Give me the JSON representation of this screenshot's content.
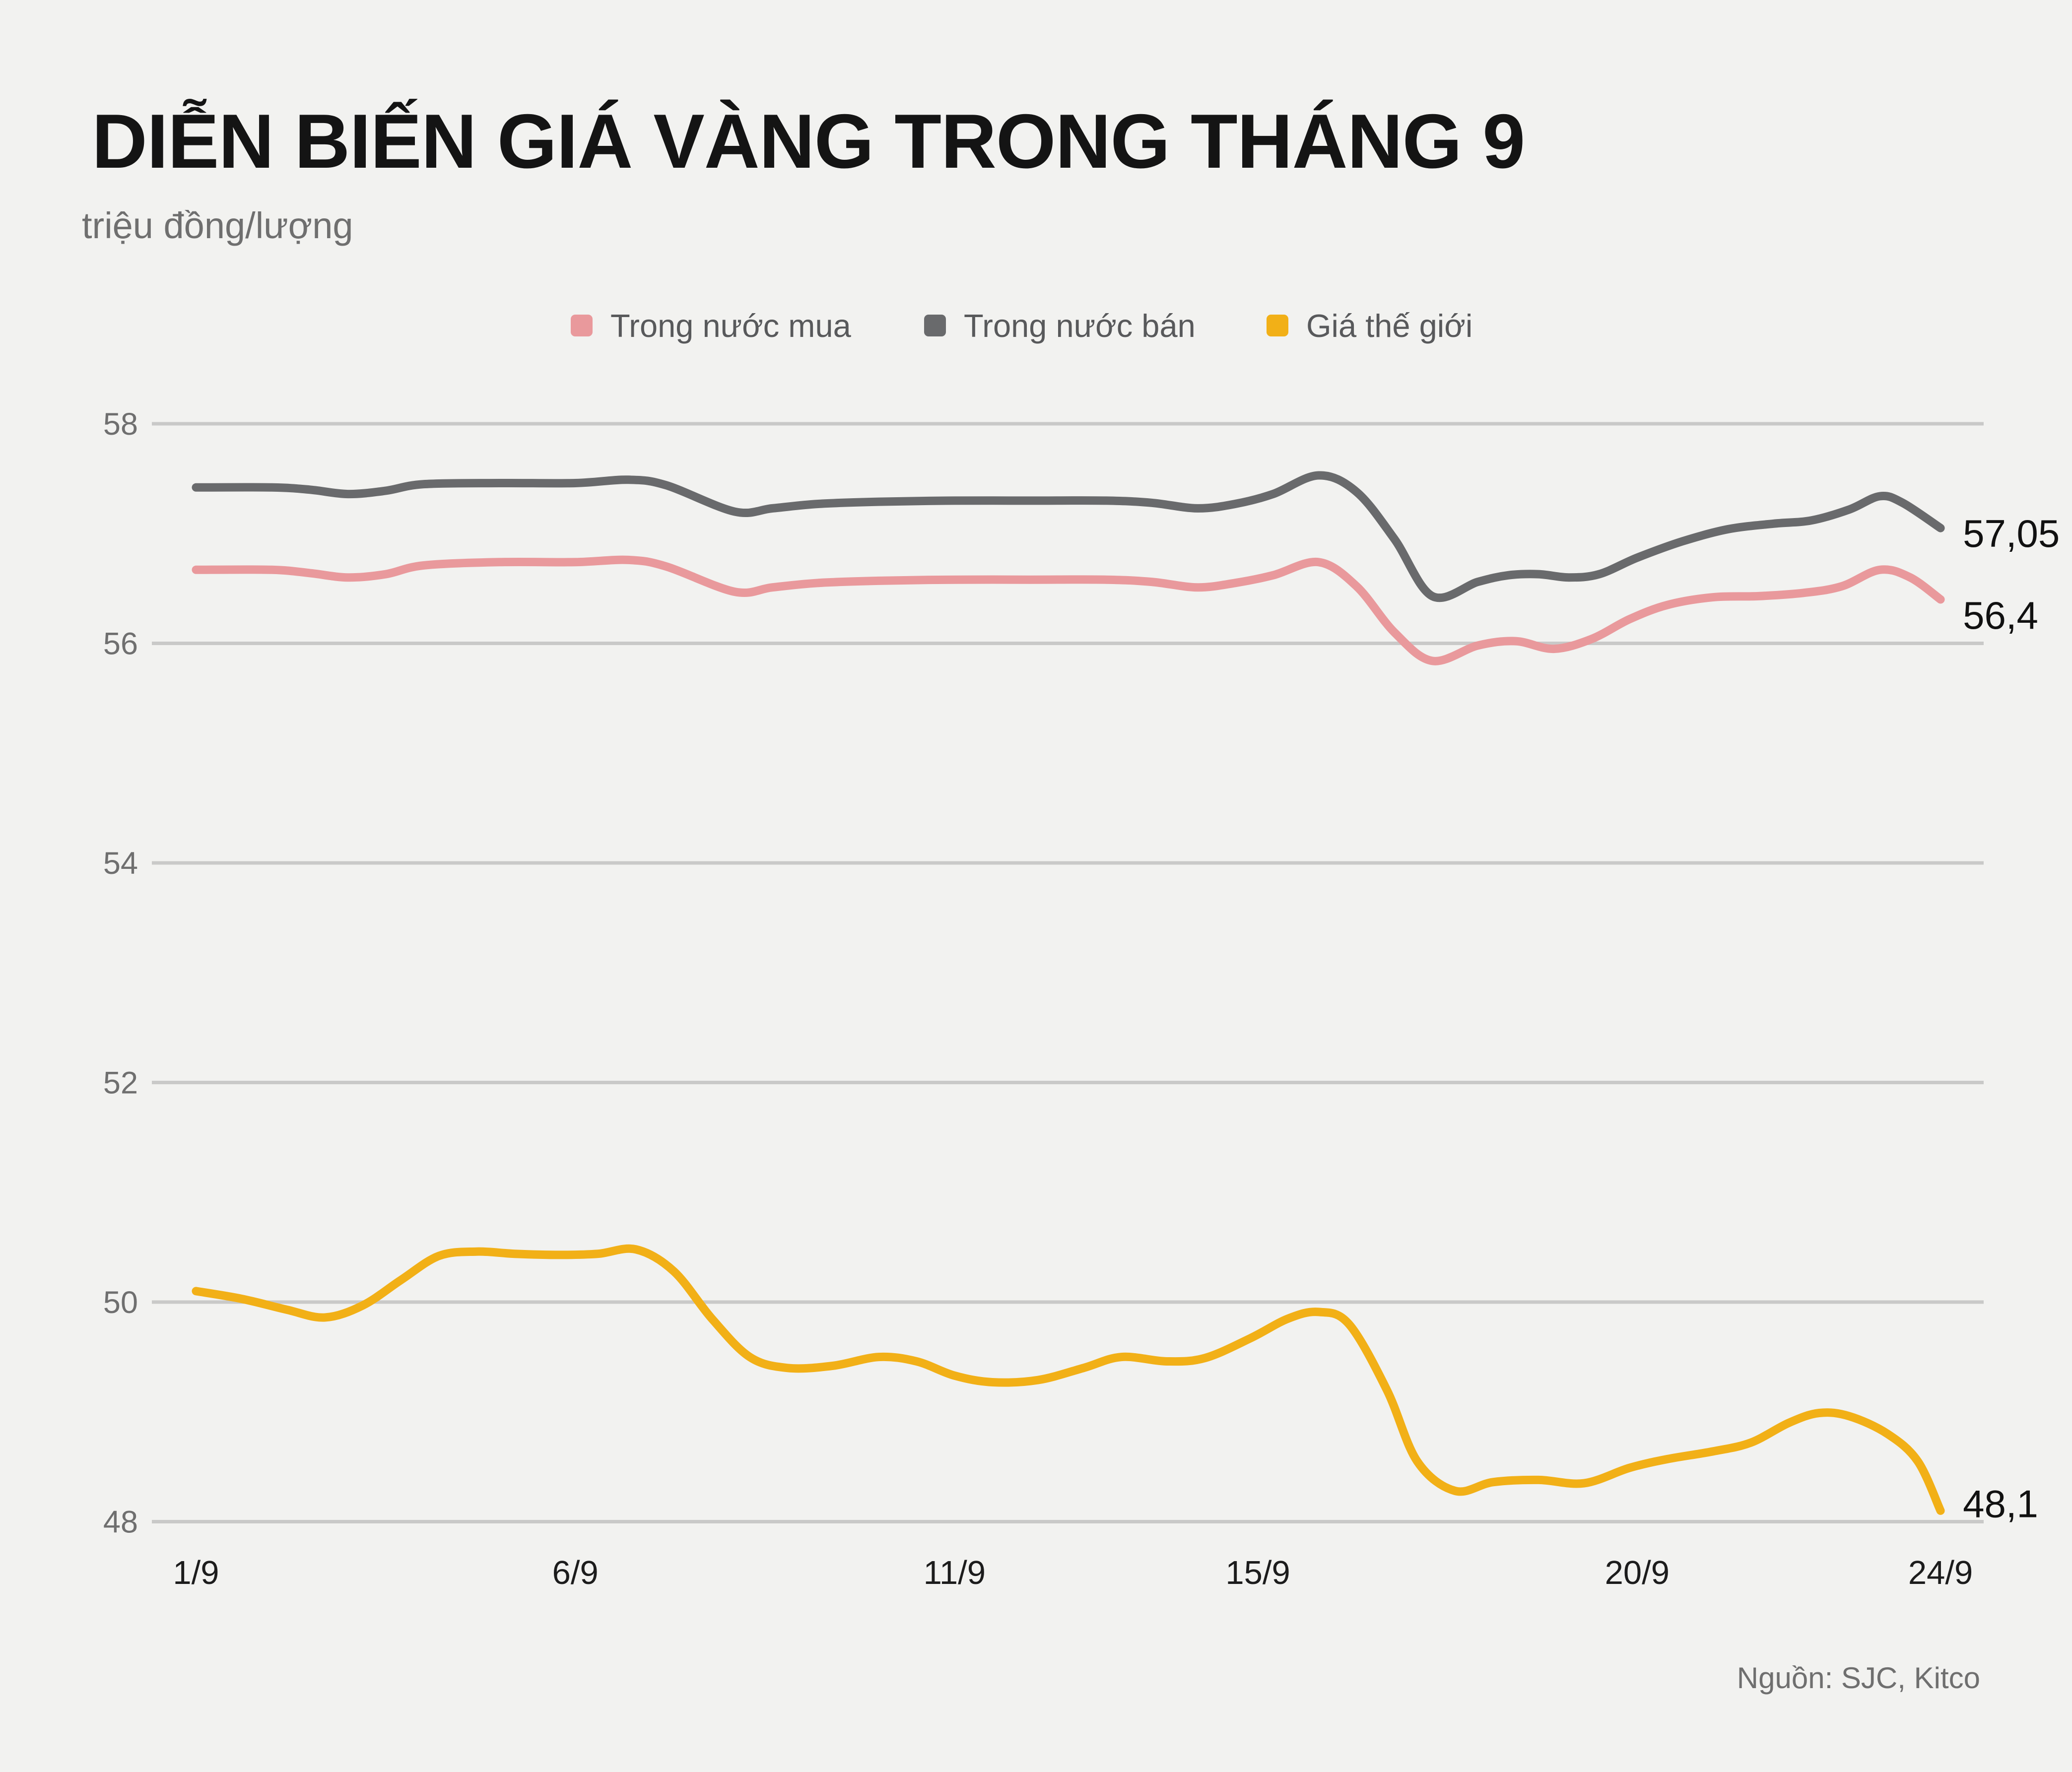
{
  "title": "DIỄN BIẾN GIÁ VÀNG TRONG THÁNG 9",
  "subtitle": "triệu đồng/lượng",
  "source": "Nguồn: SJC, Kitco",
  "colors": {
    "background": "#f2f2f0",
    "gridline": "#c9c9c8",
    "title": "#141414",
    "muted_text": "#6f6f6f",
    "axis_text": "#1c1c1c",
    "series_buy": "#e9999c",
    "series_sell": "#696a6c",
    "series_world": "#f2b017"
  },
  "chart_data": {
    "type": "line",
    "title": "DIỄN BIẾN GIÁ VÀNG TRONG THÁNG 9",
    "xlabel": "",
    "ylabel": "triệu đồng/lượng",
    "ylim": [
      48,
      58
    ],
    "xlim": [
      1,
      24
    ],
    "grid": true,
    "legend_position": "top",
    "yticks": [
      58,
      56,
      54,
      52,
      50,
      48
    ],
    "xticks": [
      {
        "day": 1,
        "label": "1/9"
      },
      {
        "day": 6,
        "label": "6/9"
      },
      {
        "day": 11,
        "label": "11/9"
      },
      {
        "day": 15,
        "label": "15/9"
      },
      {
        "day": 20,
        "label": "20/9"
      },
      {
        "day": 24,
        "label": "24/9"
      }
    ],
    "series": [
      {
        "name": "Trong nước mua",
        "color": "#e9999c",
        "end_label": "56,4",
        "end_label_dy": 59,
        "points": [
          [
            1,
            56.67
          ],
          [
            2,
            56.67
          ],
          [
            2.5,
            56.64
          ],
          [
            3,
            56.6
          ],
          [
            3.5,
            56.63
          ],
          [
            4,
            56.71
          ],
          [
            5,
            56.74
          ],
          [
            6,
            56.74
          ],
          [
            6.7,
            56.76
          ],
          [
            7.2,
            56.7
          ],
          [
            8.1,
            56.47
          ],
          [
            8.6,
            56.51
          ],
          [
            9.2,
            56.55
          ],
          [
            10,
            56.57
          ],
          [
            11,
            56.58
          ],
          [
            12,
            56.58
          ],
          [
            13,
            56.58
          ],
          [
            13.6,
            56.56
          ],
          [
            14.2,
            56.51
          ],
          [
            14.7,
            56.55
          ],
          [
            15.2,
            56.62
          ],
          [
            15.8,
            56.74
          ],
          [
            16.3,
            56.52
          ],
          [
            16.8,
            56.1
          ],
          [
            17.3,
            55.84
          ],
          [
            17.9,
            55.98
          ],
          [
            18.4,
            56.02
          ],
          [
            18.9,
            55.95
          ],
          [
            19.4,
            56.04
          ],
          [
            19.9,
            56.22
          ],
          [
            20.4,
            56.35
          ],
          [
            21,
            56.42
          ],
          [
            21.6,
            56.43
          ],
          [
            22.2,
            56.46
          ],
          [
            22.7,
            56.52
          ],
          [
            23.2,
            56.67
          ],
          [
            23.6,
            56.6
          ],
          [
            24,
            56.4
          ]
        ]
      },
      {
        "name": "Trong nước bán",
        "color": "#696a6c",
        "end_label": "57,05",
        "end_label_dy": 38,
        "points": [
          [
            1,
            57.42
          ],
          [
            2,
            57.42
          ],
          [
            2.5,
            57.4
          ],
          [
            3,
            57.36
          ],
          [
            3.5,
            57.39
          ],
          [
            4,
            57.45
          ],
          [
            5,
            57.46
          ],
          [
            6,
            57.46
          ],
          [
            6.7,
            57.49
          ],
          [
            7.2,
            57.44
          ],
          [
            8.1,
            57.2
          ],
          [
            8.6,
            57.23
          ],
          [
            9.2,
            57.27
          ],
          [
            10,
            57.29
          ],
          [
            11,
            57.3
          ],
          [
            12,
            57.3
          ],
          [
            13,
            57.3
          ],
          [
            13.6,
            57.28
          ],
          [
            14.2,
            57.23
          ],
          [
            14.7,
            57.27
          ],
          [
            15.2,
            57.36
          ],
          [
            15.8,
            57.53
          ],
          [
            16.3,
            57.38
          ],
          [
            16.8,
            56.95
          ],
          [
            17.3,
            56.43
          ],
          [
            17.9,
            56.56
          ],
          [
            18.3,
            56.62
          ],
          [
            18.7,
            56.63
          ],
          [
            19.1,
            56.6
          ],
          [
            19.5,
            56.63
          ],
          [
            20,
            56.78
          ],
          [
            20.6,
            56.93
          ],
          [
            21.2,
            57.04
          ],
          [
            21.8,
            57.09
          ],
          [
            22.3,
            57.12
          ],
          [
            22.8,
            57.22
          ],
          [
            23.2,
            57.34
          ],
          [
            23.5,
            57.28
          ],
          [
            24,
            57.05
          ]
        ]
      },
      {
        "name": "Giá thế giới",
        "color": "#f2b017",
        "end_label": "48,1",
        "end_label_dy": 13,
        "points": [
          [
            1,
            50.1
          ],
          [
            1.6,
            50.03
          ],
          [
            2.2,
            49.93
          ],
          [
            2.7,
            49.86
          ],
          [
            3.2,
            49.97
          ],
          [
            3.7,
            50.2
          ],
          [
            4.2,
            50.42
          ],
          [
            4.7,
            50.46
          ],
          [
            5.2,
            50.44
          ],
          [
            5.8,
            50.43
          ],
          [
            6.3,
            50.44
          ],
          [
            6.8,
            50.48
          ],
          [
            7.3,
            50.28
          ],
          [
            7.8,
            49.85
          ],
          [
            8.3,
            49.5
          ],
          [
            8.8,
            49.4
          ],
          [
            9.4,
            49.42
          ],
          [
            10,
            49.5
          ],
          [
            10.5,
            49.46
          ],
          [
            11,
            49.33
          ],
          [
            11.5,
            49.27
          ],
          [
            12.1,
            49.29
          ],
          [
            12.7,
            49.4
          ],
          [
            13.2,
            49.5
          ],
          [
            13.8,
            49.46
          ],
          [
            14.3,
            49.49
          ],
          [
            14.9,
            49.67
          ],
          [
            15.4,
            49.85
          ],
          [
            15.8,
            49.91
          ],
          [
            16.2,
            49.8
          ],
          [
            16.7,
            49.2
          ],
          [
            17.1,
            48.55
          ],
          [
            17.6,
            48.28
          ],
          [
            18.1,
            48.36
          ],
          [
            18.7,
            48.38
          ],
          [
            19.3,
            48.35
          ],
          [
            19.9,
            48.49
          ],
          [
            20.4,
            48.57
          ],
          [
            21,
            48.64
          ],
          [
            21.5,
            48.72
          ],
          [
            22,
            48.9
          ],
          [
            22.4,
            48.99
          ],
          [
            22.8,
            48.96
          ],
          [
            23.3,
            48.8
          ],
          [
            23.7,
            48.55
          ],
          [
            24,
            48.1
          ]
        ]
      }
    ]
  }
}
